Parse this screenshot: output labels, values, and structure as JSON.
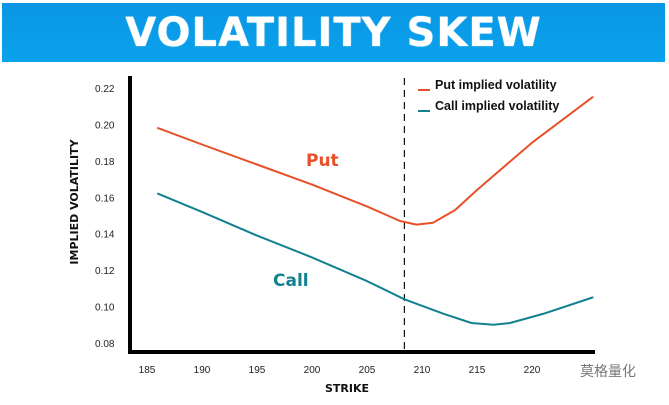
{
  "chart_data": {
    "type": "line",
    "title": "VOLATILITY SKEW",
    "xlabel": "STRIKE",
    "ylabel": "IMPLIED VOLATILITY",
    "xlim": [
      185,
      225.5
    ],
    "ylim": [
      0.08,
      0.22
    ],
    "x_ticks": [
      "185",
      "190",
      "195",
      "200",
      "205",
      "210",
      "215",
      "220"
    ],
    "y_ticks": [
      "0.22",
      "0.20",
      "0.18",
      "0.16",
      "0.14",
      "0.12",
      "0.10",
      "0.08"
    ],
    "grid": false,
    "legend_position": "top-right",
    "vertical_marker": {
      "x": 208.4,
      "style": "dashed"
    },
    "series": [
      {
        "name": "Put implied volatility",
        "annotation": "Put",
        "color": "#e8502a",
        "points": [
          [
            186,
            0.198
          ],
          [
            190,
            0.189
          ],
          [
            195,
            0.178
          ],
          [
            200,
            0.167
          ],
          [
            205,
            0.155
          ],
          [
            208,
            0.147
          ],
          [
            209.5,
            0.145
          ],
          [
            211,
            0.146
          ],
          [
            213,
            0.153
          ],
          [
            215,
            0.164
          ],
          [
            220,
            0.19
          ],
          [
            225.5,
            0.215
          ]
        ]
      },
      {
        "name": "Call implied volatility",
        "annotation": "Call",
        "color": "#12818f",
        "points": [
          [
            186,
            0.162
          ],
          [
            190,
            0.152
          ],
          [
            195,
            0.139
          ],
          [
            200,
            0.127
          ],
          [
            205,
            0.114
          ],
          [
            208.4,
            0.104
          ],
          [
            212,
            0.096
          ],
          [
            214.5,
            0.091
          ],
          [
            216.5,
            0.09
          ],
          [
            218,
            0.091
          ],
          [
            221,
            0.096
          ],
          [
            225.5,
            0.105
          ]
        ]
      }
    ]
  },
  "watermark": "莫格量化"
}
